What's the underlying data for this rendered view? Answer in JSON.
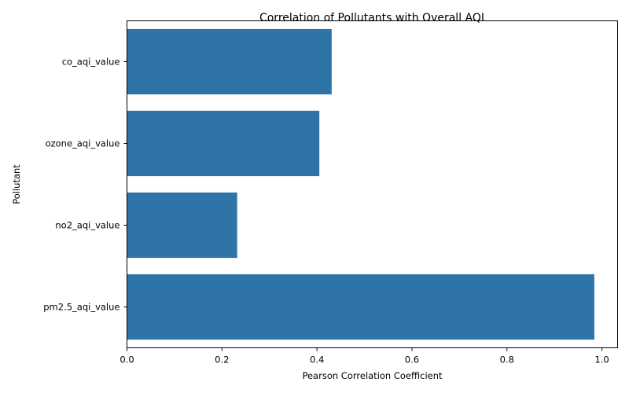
{
  "chart_data": {
    "type": "bar",
    "orientation": "horizontal",
    "title": "Correlation of Pollutants with Overall AQI",
    "xlabel": "Pearson Correlation Coefficient",
    "ylabel": "Pollutant",
    "categories": [
      "co_aqi_value",
      "ozone_aqi_value",
      "no2_aqi_value",
      "pm2.5_aqi_value"
    ],
    "values": [
      0.431,
      0.405,
      0.232,
      0.984
    ],
    "xlim": [
      0,
      1.033
    ],
    "xticks": [
      0.0,
      0.2,
      0.4,
      0.6,
      0.8,
      1.0
    ],
    "xtick_labels": [
      "0.0",
      "0.2",
      "0.4",
      "0.6",
      "0.8",
      "1.0"
    ],
    "grid": false,
    "colors": {
      "bar": "#2e74a8"
    }
  }
}
